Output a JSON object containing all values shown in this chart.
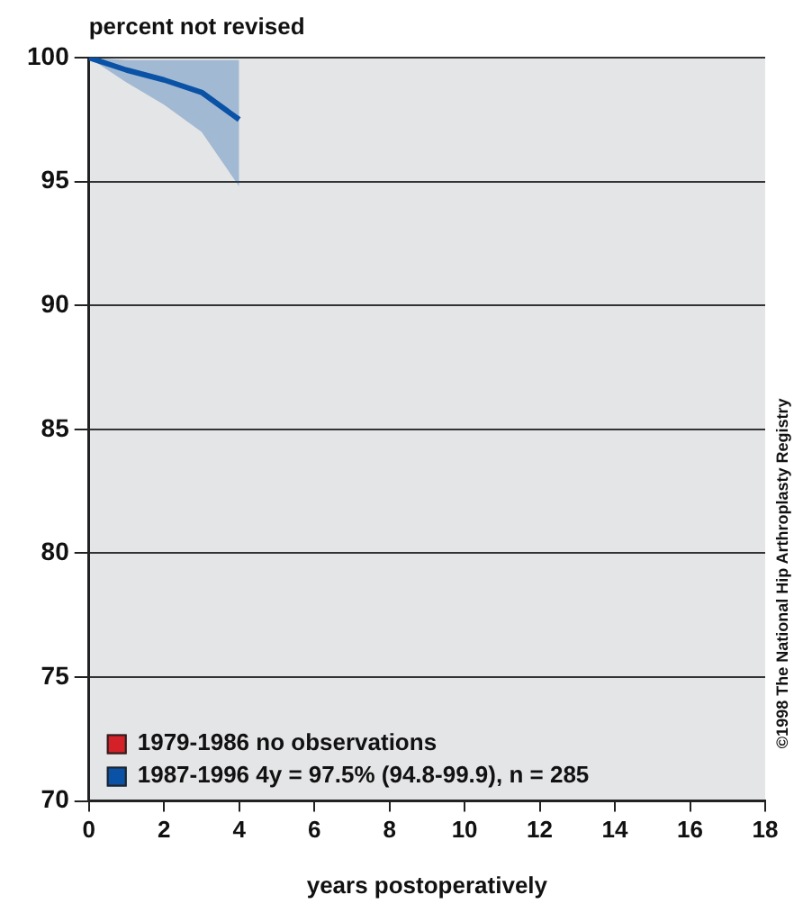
{
  "chart_data": {
    "type": "line",
    "ylabel": "percent not revised",
    "xlabel": "years postoperatively",
    "annotations": [
      "©1998 The National Hip Arthroplasty Registry"
    ],
    "x": [
      0,
      1,
      2,
      3,
      4
    ],
    "series": [
      {
        "name": "1979-1986 no observations",
        "color": "#d42027",
        "values": [
          null,
          null,
          null,
          null,
          null
        ]
      },
      {
        "name": "1987-1996 4y = 97.5% (94.8-99.9), n = 285",
        "color": "#0a52a6",
        "values": [
          100,
          99.5,
          99.1,
          98.6,
          97.5
        ],
        "lower": [
          100,
          99.0,
          98.1,
          97.0,
          94.8
        ],
        "upper": [
          100,
          99.9,
          99.9,
          99.9,
          99.9
        ]
      }
    ],
    "xlim": [
      0,
      18
    ],
    "xticks": [
      0,
      2,
      4,
      6,
      8,
      10,
      12,
      14,
      16,
      18
    ],
    "ylim": [
      70,
      100
    ],
    "yticks": [
      70,
      75,
      80,
      85,
      90,
      95,
      100
    ],
    "grid": "y",
    "legend": "bottom left",
    "marker": "none",
    "line_style": "solid"
  }
}
